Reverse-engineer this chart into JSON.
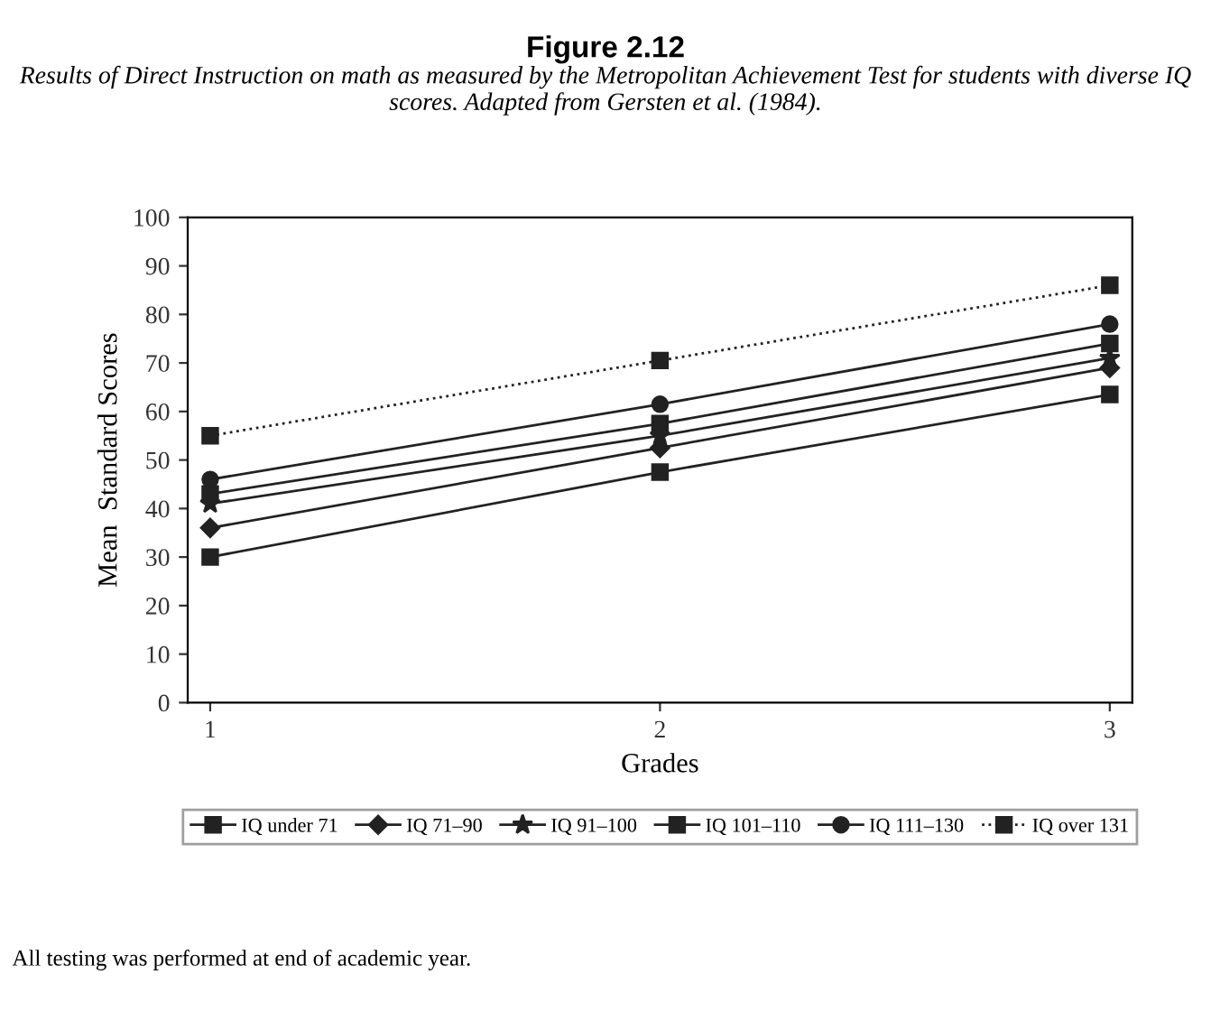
{
  "chart_data": {
    "type": "line",
    "title": "Figure 2.12",
    "subtitle": "Results of Direct Instruction on math as measured by the Metropolitan Achievement Test for students with diverse IQ scores. Adapted from Gersten et al. (1984).",
    "xlabel": "Grades",
    "ylabel": "Mean  Standard Scores",
    "x": [
      1,
      2,
      3
    ],
    "xlim": [
      0.95,
      3.05
    ],
    "xticks": [
      1,
      2,
      3
    ],
    "ylim": [
      0,
      100
    ],
    "yticks": [
      0,
      10,
      20,
      30,
      40,
      50,
      60,
      70,
      80,
      90,
      100
    ],
    "series": [
      {
        "name": "IQ under 71",
        "color": "#222222",
        "marker": "square",
        "line_style": "solid",
        "values": [
          30,
          47.5,
          63.5
        ]
      },
      {
        "name": "IQ 71–90",
        "color": "#222222",
        "marker": "diamond",
        "line_style": "solid",
        "values": [
          36,
          52.5,
          69
        ]
      },
      {
        "name": "IQ 91–100",
        "color": "#222222",
        "marker": "star",
        "line_style": "solid",
        "values": [
          41,
          55,
          71
        ]
      },
      {
        "name": "IQ 101–110",
        "color": "#222222",
        "marker": "square",
        "line_style": "solid",
        "values": [
          43,
          57.5,
          74
        ]
      },
      {
        "name": "IQ 111–130",
        "color": "#222222",
        "marker": "circle",
        "line_style": "solid",
        "values": [
          46,
          61.5,
          78
        ]
      },
      {
        "name": "IQ over 131",
        "color": "#222222",
        "marker": "square",
        "line_style": "dotted",
        "values": [
          55,
          70.5,
          86
        ]
      }
    ],
    "legend": "bottom",
    "grid": false,
    "annotations": [
      "All testing was performed at end of academic year."
    ]
  }
}
